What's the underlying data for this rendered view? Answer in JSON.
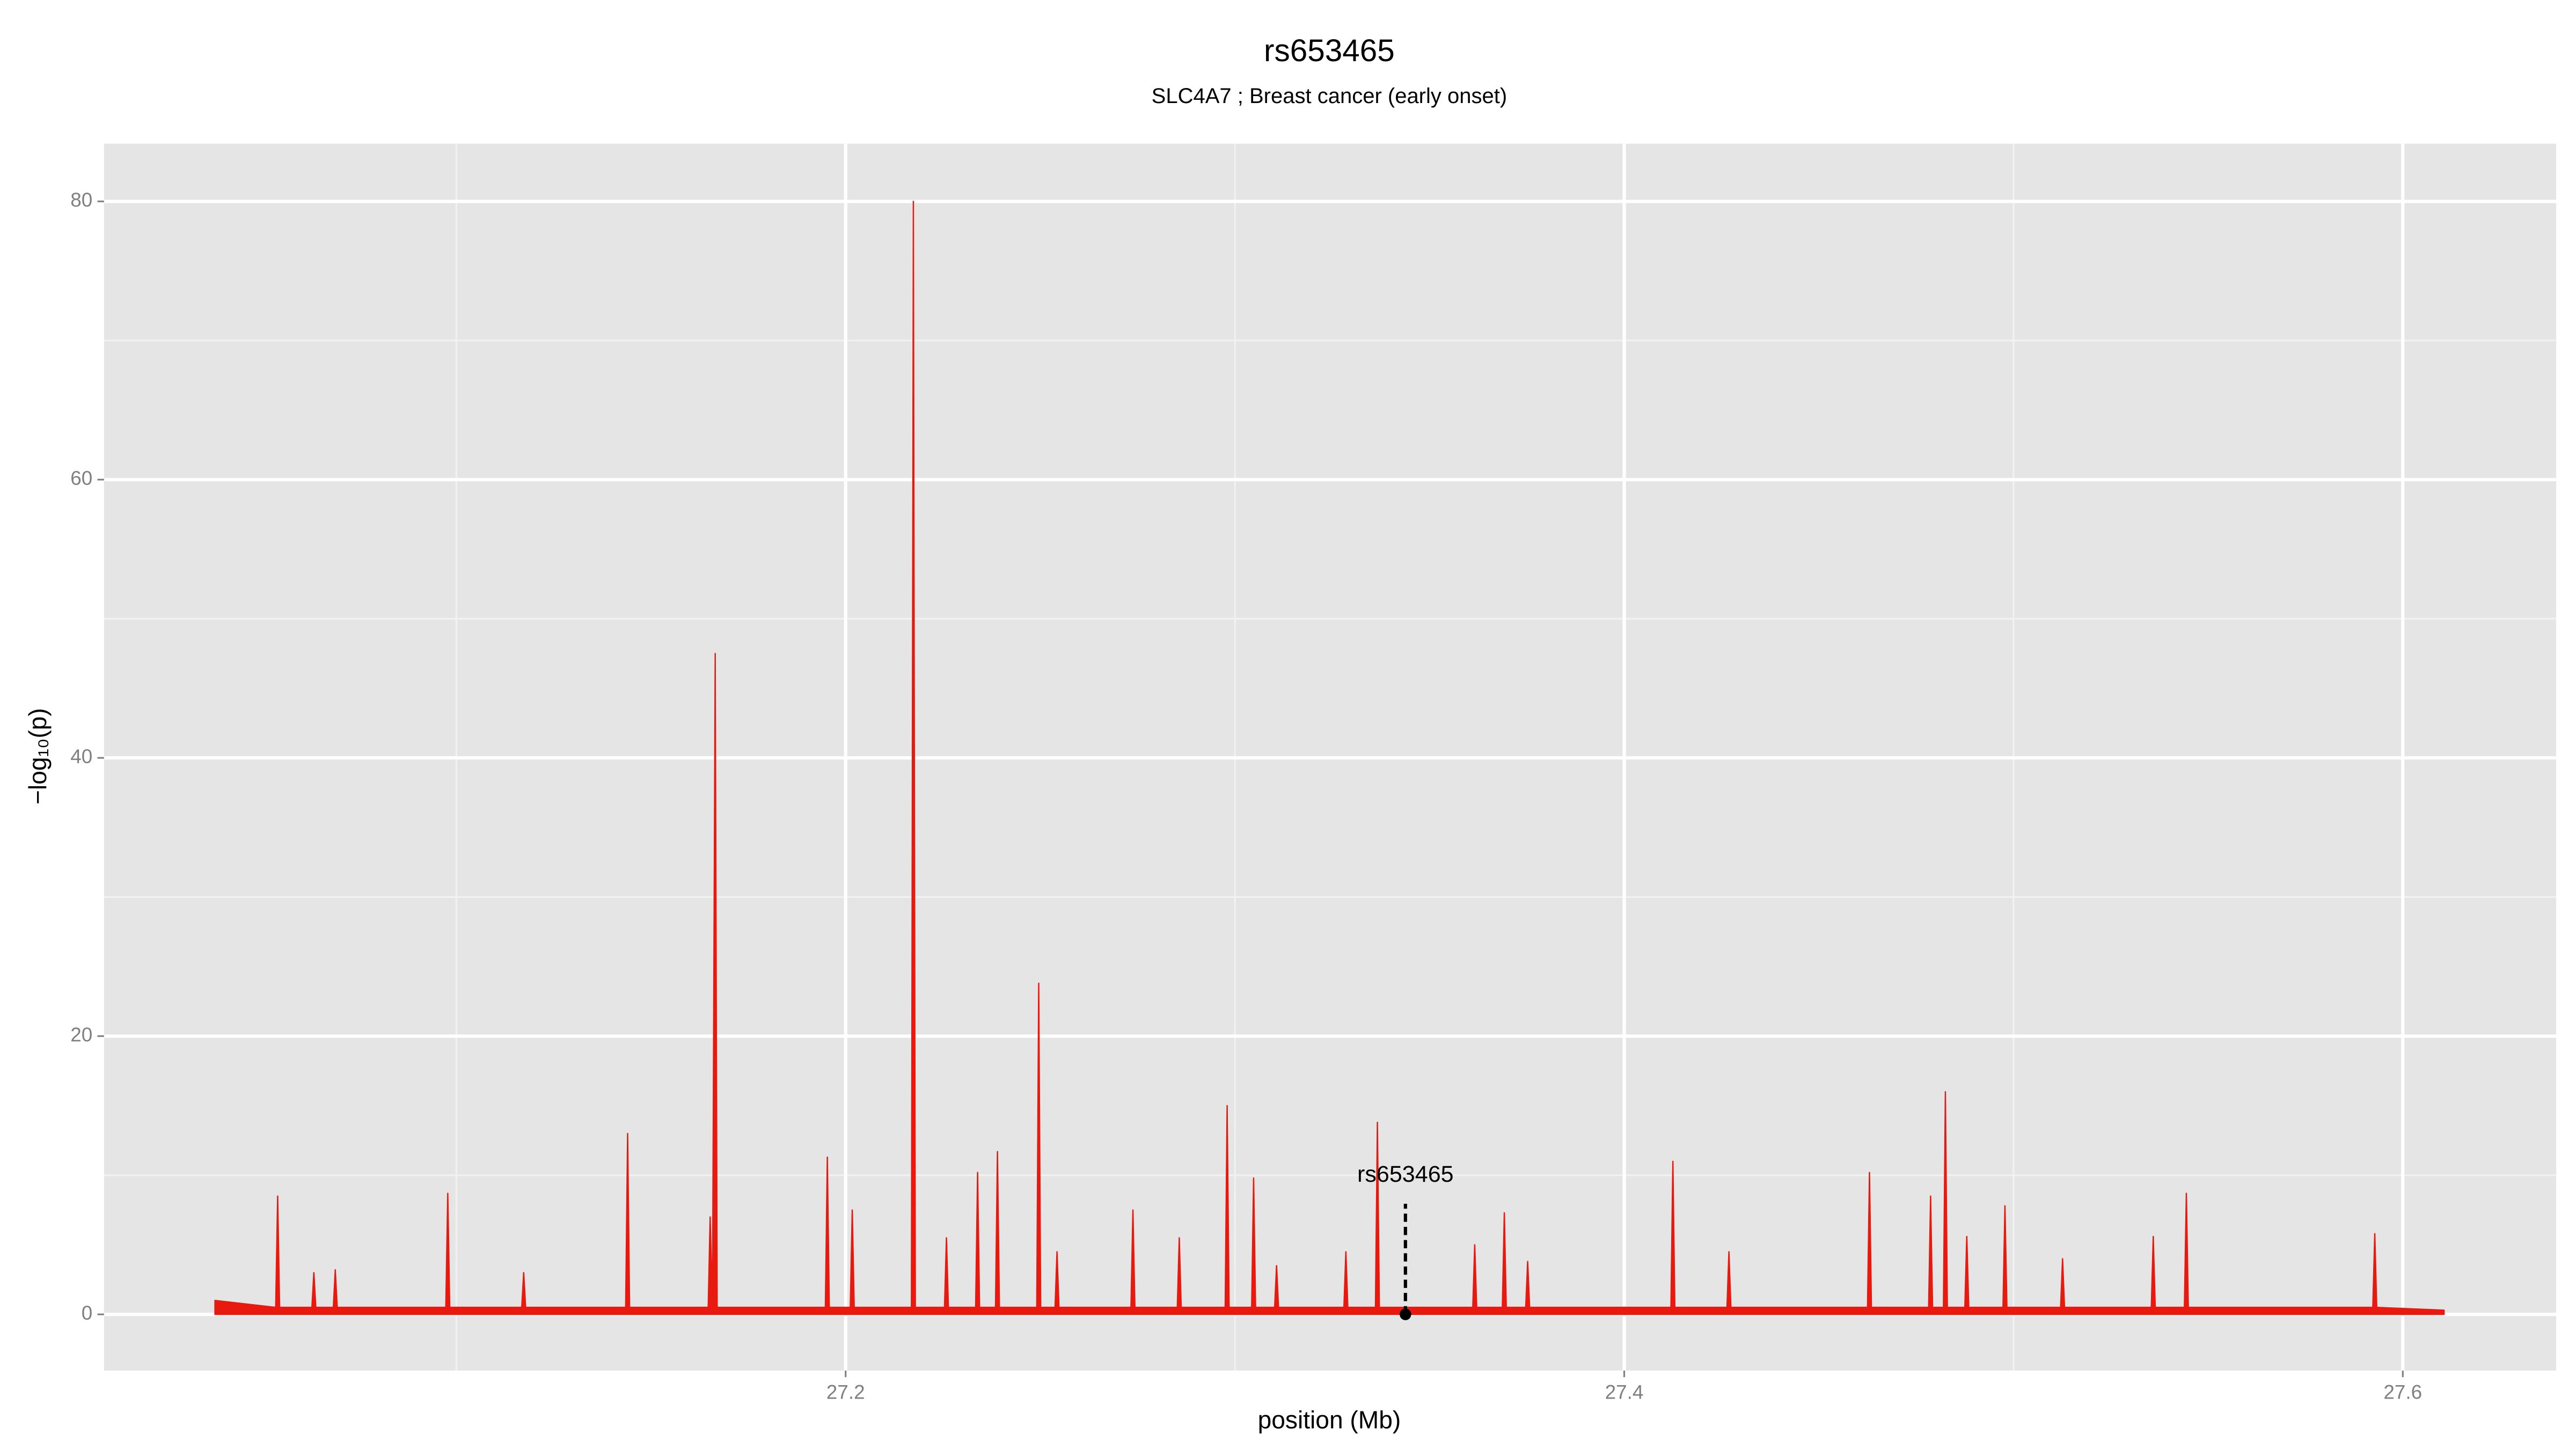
{
  "chart_data": {
    "type": "area",
    "title": "rs653465",
    "subtitle": "SLC4A7 ; Breast cancer (early onset)",
    "x_label": "position (Mb)",
    "y_label": "−log₁₀(p)",
    "color": "#e8190e",
    "grid": true,
    "xlim": [
      27.0095,
      27.6394
    ],
    "ylim": [
      -4.04,
      84.15
    ],
    "xticks": [
      27.2,
      27.4,
      27.6
    ],
    "yticks": [
      0,
      20,
      40,
      60,
      80
    ],
    "x": [
      27.038,
      27.0536,
      27.0541,
      27.0546,
      27.0629,
      27.0634,
      27.0639,
      27.0684,
      27.0689,
      27.0694,
      27.0973,
      27.0978,
      27.0983,
      27.1168,
      27.1173,
      27.1178,
      27.1435,
      27.144,
      27.1445,
      27.1647,
      27.1652,
      27.1658,
      27.1665,
      27.167,
      27.1948,
      27.1953,
      27.1958,
      27.2012,
      27.2017,
      27.2022,
      27.2169,
      27.2174,
      27.2179,
      27.2254,
      27.2259,
      27.2264,
      27.2334,
      27.2339,
      27.2344,
      27.2385,
      27.239,
      27.2395,
      27.2491,
      27.2496,
      27.2501,
      27.2538,
      27.2543,
      27.2548,
      27.2733,
      27.2738,
      27.2743,
      27.2852,
      27.2857,
      27.2862,
      27.2975,
      27.298,
      27.2985,
      27.3043,
      27.3048,
      27.3053,
      27.3102,
      27.3107,
      27.3112,
      27.328,
      27.3285,
      27.329,
      27.3361,
      27.3366,
      27.3371,
      27.3611,
      27.3616,
      27.3621,
      27.3687,
      27.3692,
      27.3697,
      27.3747,
      27.3752,
      27.3757,
      27.412,
      27.4125,
      27.413,
      27.4264,
      27.4269,
      27.4274,
      27.4625,
      27.463,
      27.4635,
      27.4782,
      27.4787,
      27.4792,
      27.482,
      27.4825,
      27.483,
      27.4875,
      27.488,
      27.4885,
      27.4973,
      27.4978,
      27.4983,
      27.5121,
      27.5126,
      27.5131,
      27.5354,
      27.5359,
      27.5364,
      27.5439,
      27.5444,
      27.5449,
      27.5923,
      27.5928,
      27.5933,
      27.6106
    ],
    "values": [
      1,
      0.5,
      8.5,
      0.5,
      0.5,
      3,
      0.5,
      0.5,
      3.2,
      0.5,
      0.5,
      8.7,
      0.5,
      0.5,
      3,
      0.5,
      0.5,
      13,
      0.5,
      0.5,
      7,
      0.5,
      47.5,
      0.5,
      0.5,
      11.3,
      0.5,
      0.5,
      7.5,
      0.5,
      0.5,
      80,
      0.5,
      0.5,
      5.5,
      0.5,
      0.5,
      10.2,
      0.5,
      0.5,
      11.7,
      0.5,
      0.5,
      23.8,
      0.5,
      0.5,
      4.5,
      0.5,
      0.5,
      7.5,
      0.5,
      0.5,
      5.5,
      0.5,
      0.5,
      15,
      0.5,
      0.5,
      9.8,
      0.5,
      0.5,
      3.5,
      0.5,
      0.5,
      4.5,
      0.5,
      0.5,
      13.8,
      0.5,
      0.5,
      5,
      0.5,
      0.5,
      7.3,
      0.5,
      0.5,
      3.8,
      0.5,
      0.5,
      11,
      0.5,
      0.5,
      4.5,
      0.5,
      0.5,
      10.2,
      0.5,
      0.5,
      8.5,
      0.5,
      0.5,
      16,
      0.5,
      0.5,
      5.6,
      0.5,
      0.5,
      7.8,
      0.5,
      0.5,
      4,
      0.5,
      0.5,
      5.6,
      0.5,
      0.5,
      8.7,
      0.5,
      0.5,
      5.8,
      0.5,
      0.3
    ],
    "annotation": {
      "text": "rs653465",
      "x": 27.3438,
      "y": 0
    }
  }
}
